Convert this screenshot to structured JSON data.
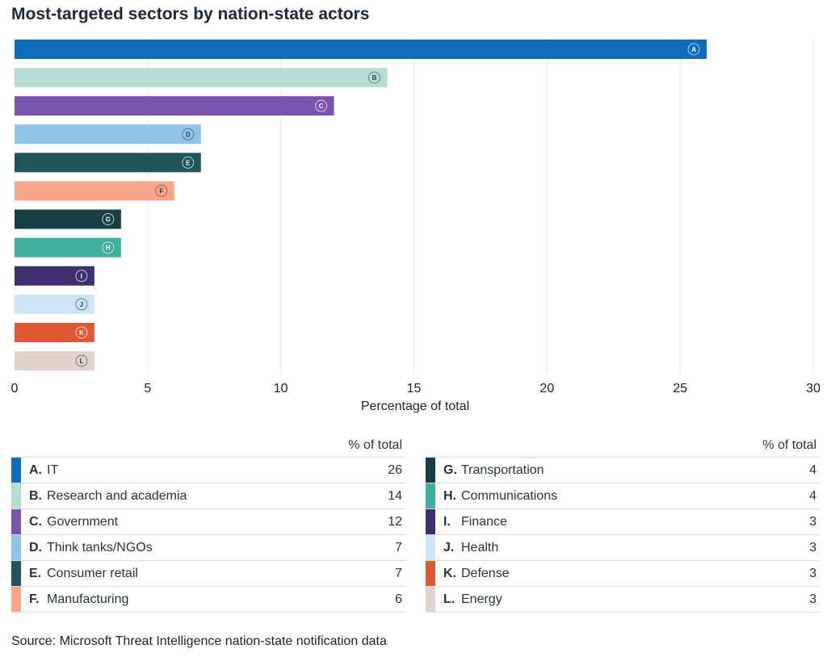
{
  "chart_data": {
    "type": "bar",
    "orientation": "horizontal",
    "title": "Most-targeted sectors by nation-state actors",
    "xlabel": "Percentage of total",
    "xlim": [
      0,
      30
    ],
    "xticks": [
      "0",
      "5",
      "10",
      "15",
      "20",
      "25",
      "30"
    ],
    "grid": true,
    "categories": [
      "A",
      "B",
      "C",
      "D",
      "E",
      "F",
      "G",
      "H",
      "I",
      "J",
      "K",
      "L"
    ],
    "values": [
      26,
      14,
      12,
      7,
      7,
      6,
      4,
      4,
      3,
      3,
      3,
      3
    ],
    "colors": [
      "#0f6cbd",
      "#b7dcd4",
      "#7a52b0",
      "#8ec5e8",
      "#1f5459",
      "#f9a58a",
      "#173f43",
      "#3fb09c",
      "#3e2f6e",
      "#cde5f5",
      "#dd5a33",
      "#e2d4cb"
    ]
  },
  "legend": {
    "header": "% of total",
    "left": [
      {
        "letter": "A.",
        "name": "IT",
        "value": "26",
        "color": "#0f6cbd"
      },
      {
        "letter": "B.",
        "name": "Research and academia",
        "value": "14",
        "color": "#b7dcd4"
      },
      {
        "letter": "C.",
        "name": "Government",
        "value": "12",
        "color": "#7a52b0"
      },
      {
        "letter": "D.",
        "name": "Think tanks/NGOs",
        "value": "7",
        "color": "#8ec5e8"
      },
      {
        "letter": "E.",
        "name": "Consumer retail",
        "value": "7",
        "color": "#1f5459"
      },
      {
        "letter": "F.",
        "name": "Manufacturing",
        "value": "6",
        "color": "#f9a58a"
      }
    ],
    "right": [
      {
        "letter": "G.",
        "name": "Transportation",
        "value": "4",
        "color": "#173f43"
      },
      {
        "letter": "H.",
        "name": "Communications",
        "value": "4",
        "color": "#3fb09c"
      },
      {
        "letter": "I.",
        "name": "Finance",
        "value": "3",
        "color": "#3e2f6e"
      },
      {
        "letter": "J.",
        "name": "Health",
        "value": "3",
        "color": "#cde5f5"
      },
      {
        "letter": "K.",
        "name": "Defense",
        "value": "3",
        "color": "#dd5a33"
      },
      {
        "letter": "L.",
        "name": "Energy",
        "value": "3",
        "color": "#e2d4cb"
      }
    ]
  },
  "source": "Source: Microsoft Threat Intelligence nation-state notification data"
}
